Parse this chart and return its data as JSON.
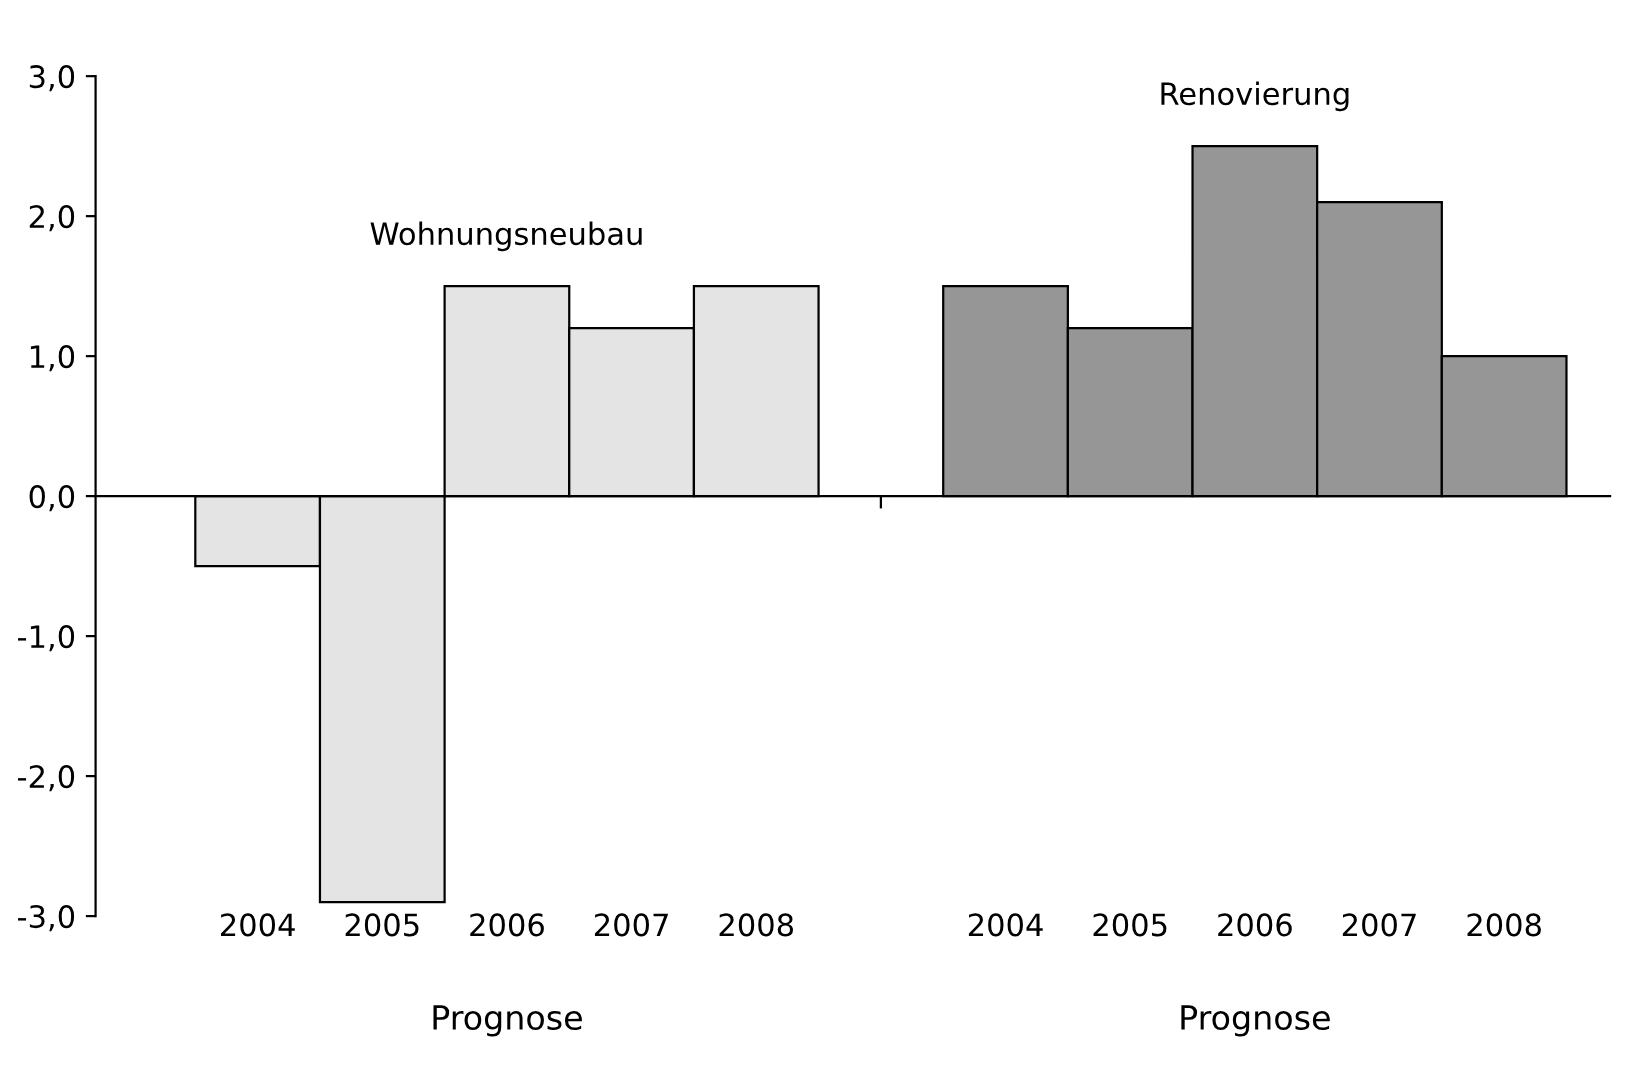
{
  "chart_data": {
    "type": "bar",
    "categories": [
      "2004",
      "2005",
      "2006",
      "2007",
      "2008",
      null,
      "2004",
      "2005",
      "2006",
      "2007",
      "2008"
    ],
    "series": [
      {
        "name": "Wohnungsneubau",
        "color": "#e4e4e4",
        "values": [
          -0.5,
          -2.9,
          1.5,
          1.2,
          1.5,
          null,
          null,
          null,
          null,
          null,
          null
        ]
      },
      {
        "name": "Renovierung",
        "color": "#969696",
        "values": [
          null,
          null,
          null,
          null,
          null,
          null,
          1.5,
          1.2,
          2.5,
          2.1,
          1.0
        ]
      }
    ],
    "ylim": [
      -3,
      3
    ],
    "yticks": [
      {
        "value": -3,
        "label": "-3,0"
      },
      {
        "value": -2,
        "label": "-2,0"
      },
      {
        "value": -1,
        "label": "-1,0"
      },
      {
        "value": 0,
        "label": "0,0"
      },
      {
        "value": 1,
        "label": "1,0"
      },
      {
        "value": 2,
        "label": "2,0"
      },
      {
        "value": 3,
        "label": "3,0"
      }
    ],
    "annotations": [
      "Prognose",
      "Prognose"
    ],
    "legend": false
  }
}
